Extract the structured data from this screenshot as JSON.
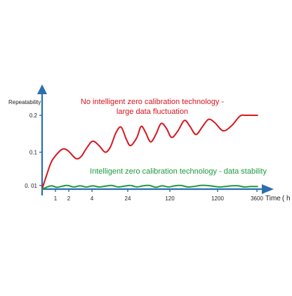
{
  "chart_data": {
    "type": "line",
    "ylabel": "Repeatability",
    "xlabel": "Time ( h )",
    "x_ticks": [
      "1",
      "2",
      "4",
      "24",
      "120",
      "1200",
      "3600"
    ],
    "y_ticks": [
      {
        "label": "0.2",
        "value": 0.2
      },
      {
        "label": "0.1",
        "value": 0.1
      },
      {
        "label": "0. 01",
        "value": 0.01
      }
    ],
    "ylim": [
      0,
      0.24
    ],
    "annotations": {
      "red_line1": "No intelligent zero calibration technology -",
      "red_line2": "large data fluctuation",
      "green_line1": "Intelligent zero calibration technology - data stability"
    },
    "series": [
      {
        "color": "#d7161f",
        "points": [
          [
            0,
            0.0
          ],
          [
            0.45,
            0.04
          ],
          [
            0.9,
            0.075
          ],
          [
            1.5,
            0.098
          ],
          [
            2.0,
            0.109
          ],
          [
            2.5,
            0.103
          ],
          [
            3.2,
            0.083
          ],
          [
            3.7,
            0.088
          ],
          [
            4.2,
            0.11
          ],
          [
            4.8,
            0.13
          ],
          [
            5.4,
            0.118
          ],
          [
            6.0,
            0.1
          ],
          [
            6.5,
            0.115
          ],
          [
            7.0,
            0.152
          ],
          [
            7.5,
            0.168
          ],
          [
            8.0,
            0.135
          ],
          [
            8.4,
            0.118
          ],
          [
            9.0,
            0.14
          ],
          [
            9.4,
            0.17
          ],
          [
            9.8,
            0.155
          ],
          [
            10.3,
            0.128
          ],
          [
            10.8,
            0.148
          ],
          [
            11.3,
            0.178
          ],
          [
            11.8,
            0.165
          ],
          [
            12.3,
            0.14
          ],
          [
            12.9,
            0.158
          ],
          [
            13.5,
            0.186
          ],
          [
            14.0,
            0.172
          ],
          [
            14.6,
            0.148
          ],
          [
            15.2,
            0.168
          ],
          [
            15.8,
            0.189
          ],
          [
            16.4,
            0.18
          ],
          [
            17.2,
            0.158
          ],
          [
            18.0,
            0.172
          ],
          [
            18.8,
            0.198
          ],
          [
            19.4,
            0.2
          ],
          [
            20.5,
            0.2
          ]
        ]
      },
      {
        "color": "#1e9a3e",
        "points": [
          [
            0,
            0.0
          ],
          [
            0.4,
            0.005
          ],
          [
            0.9,
            0.009
          ],
          [
            1.4,
            0.005
          ],
          [
            1.9,
            0.008
          ],
          [
            2.4,
            0.01
          ],
          [
            3.0,
            0.006
          ],
          [
            3.6,
            0.009
          ],
          [
            4.2,
            0.006
          ],
          [
            4.8,
            0.009
          ],
          [
            5.4,
            0.006
          ],
          [
            6.0,
            0.008
          ],
          [
            6.6,
            0.01
          ],
          [
            7.2,
            0.006
          ],
          [
            7.8,
            0.008
          ],
          [
            8.4,
            0.01
          ],
          [
            9.0,
            0.006
          ],
          [
            9.6,
            0.009
          ],
          [
            10.2,
            0.01
          ],
          [
            10.8,
            0.005
          ],
          [
            11.4,
            0.009
          ],
          [
            12.0,
            0.006
          ],
          [
            12.6,
            0.009
          ],
          [
            13.2,
            0.01
          ],
          [
            13.8,
            0.006
          ],
          [
            14.4,
            0.007
          ],
          [
            15.0,
            0.01
          ],
          [
            15.6,
            0.01
          ],
          [
            16.2,
            0.008
          ],
          [
            16.8,
            0.006
          ],
          [
            17.4,
            0.007
          ],
          [
            18.0,
            0.009
          ],
          [
            18.6,
            0.009
          ],
          [
            19.2,
            0.006
          ],
          [
            19.8,
            0.007
          ],
          [
            20.5,
            0.007
          ]
        ]
      }
    ]
  }
}
